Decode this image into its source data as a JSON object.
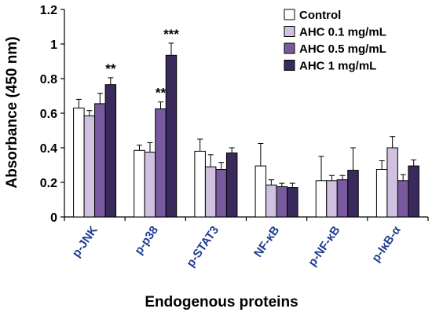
{
  "chart_data": {
    "type": "bar",
    "title": "",
    "xlabel": "Endogenous proteins",
    "ylabel": "Absorbance (450 nm)",
    "ylim": [
      0,
      1.2
    ],
    "yticks": [
      0,
      0.2,
      0.4,
      0.6,
      0.8,
      1,
      1.2
    ],
    "ytick_labels": [
      "0",
      "0.2",
      "0.4",
      "0.6",
      "0.8",
      "1",
      "1.2"
    ],
    "categories": [
      "p-JNK",
      "p-p38",
      "p-STAT3",
      "NF-κB",
      "p-NF-κB",
      "p-IκB-α"
    ],
    "grid": false,
    "legend_position": "top-right",
    "colors": {
      "category_labels": "#1f3d8f",
      "axis": "#000000",
      "text": "#000000"
    },
    "series": [
      {
        "name": "Control",
        "color": "#ffffff",
        "values": [
          0.63,
          0.385,
          0.38,
          0.295,
          0.21,
          0.275
        ],
        "errors": [
          0.05,
          0.03,
          0.07,
          0.13,
          0.14,
          0.05
        ]
      },
      {
        "name": "AHC 0.1 mg/mL",
        "color": "#cfc1df",
        "values": [
          0.585,
          0.375,
          0.29,
          0.185,
          0.21,
          0.4
        ],
        "errors": [
          0.03,
          0.055,
          0.07,
          0.03,
          0.03,
          0.065
        ]
      },
      {
        "name": "AHC 0.5 mg/mL",
        "color": "#7a5a9e",
        "values": [
          0.655,
          0.625,
          0.275,
          0.175,
          0.215,
          0.21
        ],
        "errors": [
          0.06,
          0.04,
          0.04,
          0.02,
          0.025,
          0.035
        ]
      },
      {
        "name": "AHC 1 mg/mL",
        "color": "#3a2a5c",
        "values": [
          0.765,
          0.935,
          0.37,
          0.17,
          0.27,
          0.295
        ],
        "errors": [
          0.04,
          0.07,
          0.03,
          0.025,
          0.13,
          0.035
        ]
      }
    ],
    "annotations": [
      {
        "text": "**",
        "category_index": 0,
        "series_index": 3
      },
      {
        "text": "**",
        "category_index": 1,
        "series_index": 2
      },
      {
        "text": "***",
        "category_index": 1,
        "series_index": 3
      }
    ]
  }
}
